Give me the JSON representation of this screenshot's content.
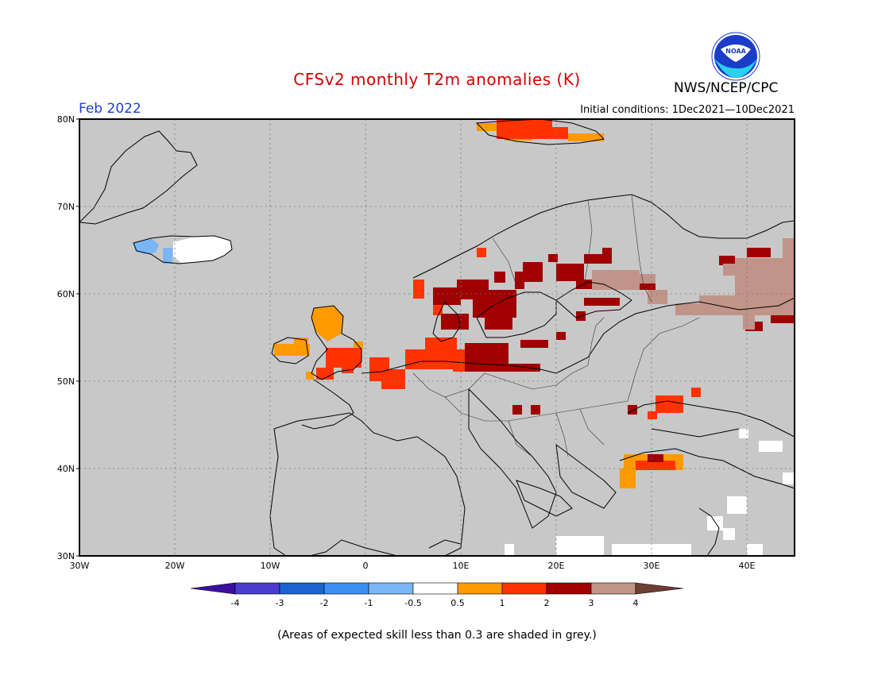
{
  "header": {
    "title": "CFSv2 monthly T2m anomalies (K)",
    "month": "Feb 2022",
    "initial_conditions": "Initial conditions: 1Dec2021—10Dec2021",
    "agency": "NWS/NCEP/CPC",
    "logo_text": "NOAA"
  },
  "map": {
    "lat_labels": [
      "80N",
      "70N",
      "60N",
      "50N",
      "40N",
      "30N"
    ],
    "lon_labels": [
      "30W",
      "20W",
      "10W",
      "0",
      "10E",
      "20E",
      "30E",
      "40E"
    ],
    "extent": {
      "lon_min": -30,
      "lon_max": 45,
      "lat_min": 30,
      "lat_max": 80
    },
    "skill_mask_color": "#c8c8c8",
    "anomaly_regions": [
      {
        "region": "Svalbard",
        "category": "1 to 3"
      },
      {
        "region": "Ireland and Scotland",
        "category": "0.5 to 1"
      },
      {
        "region": "Southern England and Benelux",
        "category": "1 to 2"
      },
      {
        "region": "Germany and Poland",
        "category": "2 to 3"
      },
      {
        "region": "Southern Norway and Sweden",
        "category": "2 to 3"
      },
      {
        "region": "Finland and Baltic",
        "category": "2 to 3"
      },
      {
        "region": "Northwest Russia",
        "category": "3 to 4"
      },
      {
        "region": "Ukraine",
        "category": "1 to 2"
      },
      {
        "region": "Turkey",
        "category": "0.5 to 2"
      },
      {
        "region": "Iceland",
        "category": "-1 to 0.5"
      }
    ]
  },
  "colorbar": {
    "tick_labels": [
      "-4",
      "-3",
      "-2",
      "-1",
      "-0.5",
      "0.5",
      "1",
      "2",
      "3",
      "4"
    ],
    "colors": [
      "#3a0fa0",
      "#4a3ccc",
      "#1b64d0",
      "#3c8ff0",
      "#7ab6f6",
      "#ffffff",
      "#ff9a00",
      "#ff3300",
      "#a00000",
      "#c09488",
      "#6e3e30"
    ]
  },
  "footnote": "(Areas of expected skill less than 0.3 are shaded in grey.)"
}
